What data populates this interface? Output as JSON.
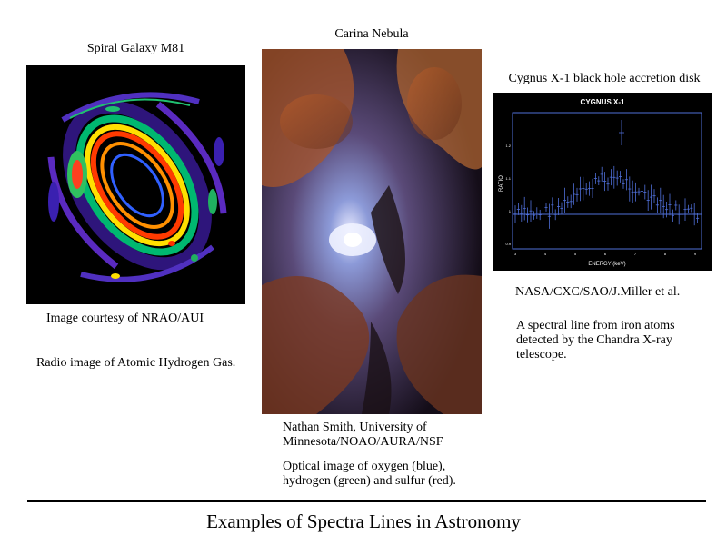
{
  "panels": {
    "m81": {
      "title": "Spiral Galaxy M81",
      "credit": "Image courtesy of NRAO/AUI",
      "description": "Radio image of Atomic Hydrogen Gas."
    },
    "carina": {
      "title": "Carina Nebula",
      "credit": "Nathan Smith, University of Minnesota/NOAO/AURA/NSF",
      "description": "Optical image of oxygen (blue), hydrogen (green) and sulfur (red)."
    },
    "cygnus": {
      "title": "Cygnus X-1 black hole accretion disk",
      "credit": "NASA/CXC/SAO/J.Miller et al.",
      "description": "A spectral line from iron atoms detected by the Chandra X-ray telescope.",
      "plot": {
        "heading": "CYGNUS X-1",
        "xlabel": "ENERGY (keV)",
        "ylabel": "RATIO",
        "yticks": [
          "1.2",
          "1.1",
          "1",
          "0.9"
        ],
        "xticks": [
          "3",
          "4",
          "5",
          "6",
          "7",
          "8",
          "9"
        ]
      }
    }
  },
  "footer": {
    "title": "Examples of Spectra Lines in Astronomy"
  },
  "colors": {
    "plot_line": "#4f6fd8",
    "plot_text": "#ffffff"
  }
}
